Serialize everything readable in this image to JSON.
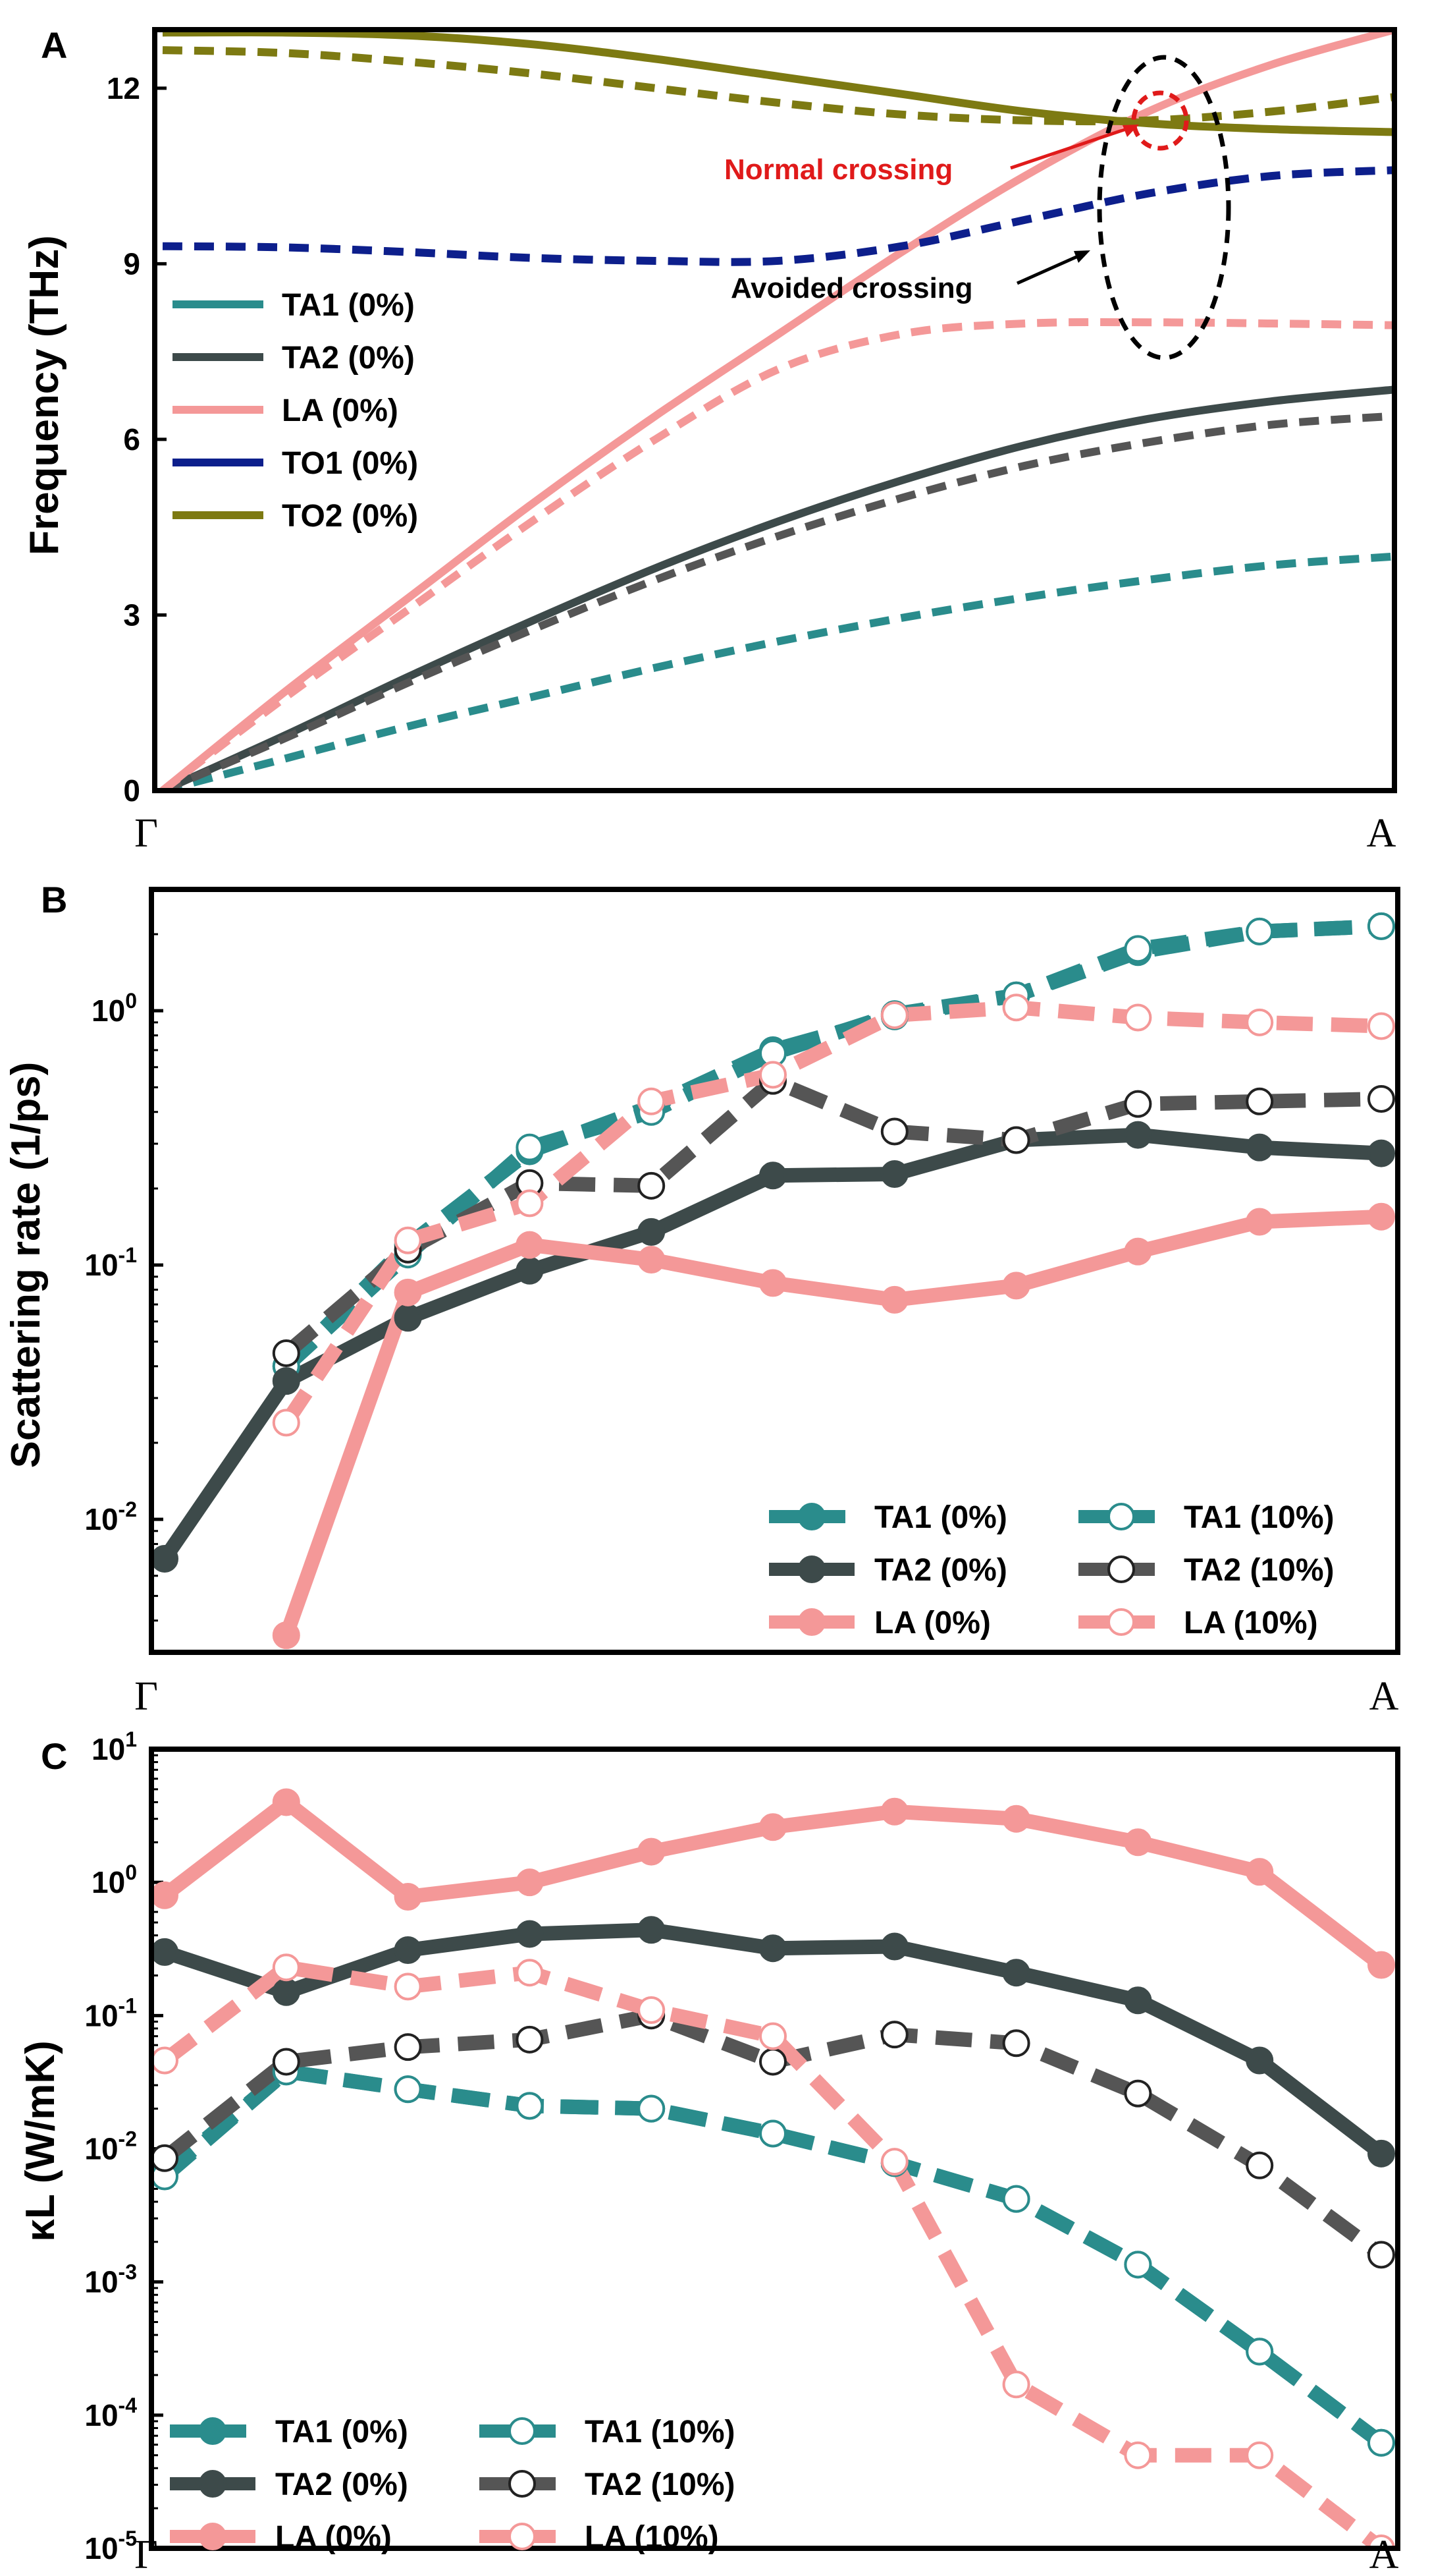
{
  "chart_data": [
    {
      "panel": "A",
      "type": "line",
      "ylabel": "Frequency (THz)",
      "ylim": [
        0,
        13
      ],
      "yticks": [
        0,
        3,
        6,
        9,
        12
      ],
      "x_ticks": [
        "Γ",
        "A"
      ],
      "legend": [
        "TA1 (0%)",
        "TA2 (0%)",
        "LA (0%)",
        "TO1 (0%)",
        "TO2 (0%)"
      ],
      "annotations": [
        "Normal crossing",
        "Avoided crossing"
      ],
      "series": [
        {
          "name": "TA1 (0%)",
          "style": "dashed",
          "color": "#2a8c8c",
          "x": [
            0,
            0.1,
            0.2,
            0.3,
            0.4,
            0.5,
            0.6,
            0.7,
            0.8,
            0.9,
            1.0
          ],
          "y": [
            0,
            0.55,
            1.1,
            1.6,
            2.1,
            2.55,
            2.95,
            3.3,
            3.6,
            3.85,
            4.0
          ]
        },
        {
          "name": "TA2 (0%)",
          "style": "solid",
          "color": "#3d4a4a",
          "x": [
            0,
            0.1,
            0.2,
            0.3,
            0.4,
            0.5,
            0.6,
            0.7,
            0.8,
            0.9,
            1.0
          ],
          "y": [
            0,
            0.95,
            1.95,
            2.9,
            3.8,
            4.6,
            5.3,
            5.9,
            6.35,
            6.65,
            6.85
          ]
        },
        {
          "name": "TA2 (0%) dashed",
          "style": "dashed",
          "color": "#555555",
          "x": [
            0,
            0.1,
            0.2,
            0.3,
            0.4,
            0.5,
            0.6,
            0.7,
            0.8,
            0.9,
            1.0
          ],
          "y": [
            0,
            0.9,
            1.85,
            2.75,
            3.6,
            4.35,
            5.0,
            5.55,
            5.95,
            6.25,
            6.4
          ]
        },
        {
          "name": "LA (0%)",
          "style": "solid",
          "color": "#f49898",
          "x": [
            0,
            0.1,
            0.2,
            0.3,
            0.4,
            0.5,
            0.6,
            0.7,
            0.8,
            0.9,
            1.0
          ],
          "y": [
            0,
            1.7,
            3.3,
            4.9,
            6.4,
            7.8,
            9.2,
            10.5,
            11.6,
            12.4,
            13.0
          ]
        },
        {
          "name": "LA (0%) dashed",
          "style": "dashed",
          "color": "#f49898",
          "x": [
            0,
            0.1,
            0.2,
            0.3,
            0.4,
            0.5,
            0.6,
            0.7,
            0.8,
            0.9,
            1.0
          ],
          "y": [
            0,
            1.6,
            3.1,
            4.6,
            6.0,
            7.2,
            7.8,
            7.98,
            8.0,
            7.98,
            7.95
          ]
        },
        {
          "name": "TO1 (0%)",
          "style": "dashed",
          "color": "#0d1f8c",
          "x": [
            0,
            0.1,
            0.2,
            0.3,
            0.4,
            0.5,
            0.6,
            0.7,
            0.8,
            0.9,
            1.0
          ],
          "y": [
            9.3,
            9.28,
            9.2,
            9.1,
            9.05,
            9.05,
            9.3,
            9.75,
            10.2,
            10.5,
            10.6
          ]
        },
        {
          "name": "TO2 (0%)",
          "style": "solid",
          "color": "#7d7a12",
          "x": [
            0,
            0.1,
            0.2,
            0.3,
            0.4,
            0.5,
            0.6,
            0.7,
            0.8,
            0.9,
            1.0
          ],
          "y": [
            12.95,
            12.95,
            12.9,
            12.75,
            12.5,
            12.2,
            11.9,
            11.6,
            11.4,
            11.3,
            11.25
          ]
        },
        {
          "name": "TO2 (0%) dashed",
          "style": "dashed",
          "color": "#7d7a12",
          "x": [
            0,
            0.1,
            0.2,
            0.3,
            0.4,
            0.5,
            0.6,
            0.7,
            0.8,
            0.9,
            1.0
          ],
          "y": [
            12.65,
            12.6,
            12.45,
            12.25,
            12.0,
            11.75,
            11.55,
            11.45,
            11.45,
            11.6,
            11.85
          ]
        }
      ]
    },
    {
      "panel": "B",
      "type": "line",
      "yscale": "log",
      "ylabel": "Scattering rate (1/ps)",
      "ylim": [
        0.003,
        3
      ],
      "yticks": [
        "10-2",
        "10-1",
        "100"
      ],
      "x_ticks": [
        "Γ",
        "A"
      ],
      "legend": [
        "TA1 (0%)",
        "TA1 (10%)",
        "TA2 (0%)",
        "TA2 (10%)",
        "LA (0%)",
        "LA (10%)"
      ],
      "series": [
        {
          "name": "TA1 (0%)",
          "marker": "filled",
          "style": "dashed",
          "color": "#2a8c8c",
          "x": [
            0.1,
            0.2,
            0.3,
            0.4,
            0.5,
            0.6,
            0.7,
            0.8,
            0.9,
            1.0
          ],
          "y": [
            0.04,
            0.12,
            0.28,
            0.42,
            0.7,
            0.95,
            1.15,
            1.7,
            2.05,
            2.15
          ]
        },
        {
          "name": "TA1 (10%)",
          "marker": "open",
          "style": "dashed",
          "color": "#2a8c8c",
          "x": [
            0.1,
            0.2,
            0.3,
            0.4,
            0.5,
            0.6,
            0.7,
            0.8,
            0.9,
            1.0
          ],
          "y": [
            0.04,
            0.11,
            0.29,
            0.4,
            0.68,
            0.97,
            1.15,
            1.75,
            2.05,
            2.15
          ]
        },
        {
          "name": "TA2 (0%)",
          "marker": "filled",
          "style": "solid",
          "color": "#3d4a4a",
          "x": [
            0.0,
            0.1,
            0.2,
            0.3,
            0.4,
            0.5,
            0.6,
            0.7,
            0.8,
            0.9,
            1.0
          ],
          "y": [
            0.007,
            0.035,
            0.062,
            0.095,
            0.135,
            0.225,
            0.228,
            0.31,
            0.325,
            0.29,
            0.275
          ]
        },
        {
          "name": "TA2 (10%)",
          "marker": "open",
          "style": "dashed",
          "color": "#555555",
          "x": [
            0.1,
            0.2,
            0.3,
            0.4,
            0.5,
            0.6,
            0.7,
            0.8,
            0.9,
            1.0
          ],
          "y": [
            0.045,
            0.115,
            0.21,
            0.205,
            0.53,
            0.335,
            0.31,
            0.43,
            0.44,
            0.45
          ]
        },
        {
          "name": "LA (0%)",
          "marker": "filled",
          "style": "solid",
          "color": "#f49898",
          "x": [
            0.1,
            0.2,
            0.3,
            0.4,
            0.5,
            0.6,
            0.7,
            0.8,
            0.9,
            1.0
          ],
          "y": [
            0.0035,
            0.078,
            0.12,
            0.105,
            0.085,
            0.073,
            0.083,
            0.113,
            0.148,
            0.155
          ]
        },
        {
          "name": "LA (10%)",
          "marker": "open",
          "style": "dashed",
          "color": "#f49898",
          "x": [
            0.1,
            0.2,
            0.3,
            0.4,
            0.5,
            0.6,
            0.7,
            0.8,
            0.9,
            1.0
          ],
          "y": [
            0.024,
            0.125,
            0.175,
            0.44,
            0.56,
            0.96,
            1.03,
            0.94,
            0.9,
            0.87
          ]
        }
      ]
    },
    {
      "panel": "C",
      "type": "line",
      "yscale": "log",
      "ylabel": "κL (W/mK)",
      "ylim": [
        1e-05,
        10
      ],
      "yticks": [
        "10-5",
        "10-4",
        "10-3",
        "10-2",
        "10-1",
        "100",
        "101"
      ],
      "x_ticks": [
        "Γ",
        "A"
      ],
      "legend": [
        "TA1 (0%)",
        "TA1 (10%)",
        "TA2 (0%)",
        "TA2 (10%)",
        "LA (0%)",
        "LA (10%)"
      ],
      "series": [
        {
          "name": "TA1 (0%)",
          "marker": "filled",
          "style": "dashed",
          "color": "#2a8c8c",
          "x": [
            0.0,
            0.1,
            0.2,
            0.3,
            0.4,
            0.5,
            0.6,
            0.7,
            0.8,
            0.9,
            1.0
          ],
          "y": [
            0.0065,
            0.038,
            0.028,
            0.021,
            0.02,
            0.013,
            0.0078,
            0.0042,
            0.00135,
            0.0003,
            6.2e-05
          ]
        },
        {
          "name": "TA1 (10%)",
          "marker": "open",
          "style": "dashed",
          "color": "#2a8c8c",
          "x": [
            0.0,
            0.1,
            0.2,
            0.3,
            0.4,
            0.5,
            0.6,
            0.7,
            0.8,
            0.9,
            1.0
          ],
          "y": [
            0.0062,
            0.038,
            0.028,
            0.021,
            0.02,
            0.013,
            0.0078,
            0.0042,
            0.00135,
            0.0003,
            6.2e-05
          ]
        },
        {
          "name": "TA2 (0%)",
          "marker": "filled",
          "style": "solid",
          "color": "#3d4a4a",
          "x": [
            0.0,
            0.1,
            0.2,
            0.3,
            0.4,
            0.5,
            0.6,
            0.7,
            0.8,
            0.9,
            1.0
          ],
          "y": [
            0.3,
            0.15,
            0.31,
            0.41,
            0.44,
            0.32,
            0.33,
            0.21,
            0.13,
            0.046,
            0.0092
          ]
        },
        {
          "name": "TA2 (10%)",
          "marker": "open",
          "style": "dashed",
          "color": "#555555",
          "x": [
            0.0,
            0.1,
            0.2,
            0.3,
            0.4,
            0.5,
            0.6,
            0.7,
            0.8,
            0.9,
            1.0
          ],
          "y": [
            0.0085,
            0.045,
            0.058,
            0.066,
            0.1,
            0.045,
            0.072,
            0.062,
            0.026,
            0.0075,
            0.0016
          ]
        },
        {
          "name": "LA (0%)",
          "marker": "filled",
          "style": "solid",
          "color": "#f49898",
          "x": [
            0.0,
            0.1,
            0.2,
            0.3,
            0.4,
            0.5,
            0.6,
            0.7,
            0.8,
            0.9,
            1.0
          ],
          "y": [
            0.8,
            4.0,
            0.78,
            1.0,
            1.7,
            2.6,
            3.4,
            3.0,
            2.0,
            1.2,
            0.24
          ]
        },
        {
          "name": "LA (10%)",
          "marker": "open",
          "style": "dashed",
          "color": "#f49898",
          "x": [
            0.0,
            0.1,
            0.2,
            0.3,
            0.4,
            0.5,
            0.6,
            0.7,
            0.8,
            0.9,
            1.0
          ],
          "y": [
            0.046,
            0.23,
            0.165,
            0.21,
            0.11,
            0.07,
            0.008,
            0.00017,
            5e-05,
            5e-05,
            1e-05
          ]
        }
      ]
    }
  ]
}
